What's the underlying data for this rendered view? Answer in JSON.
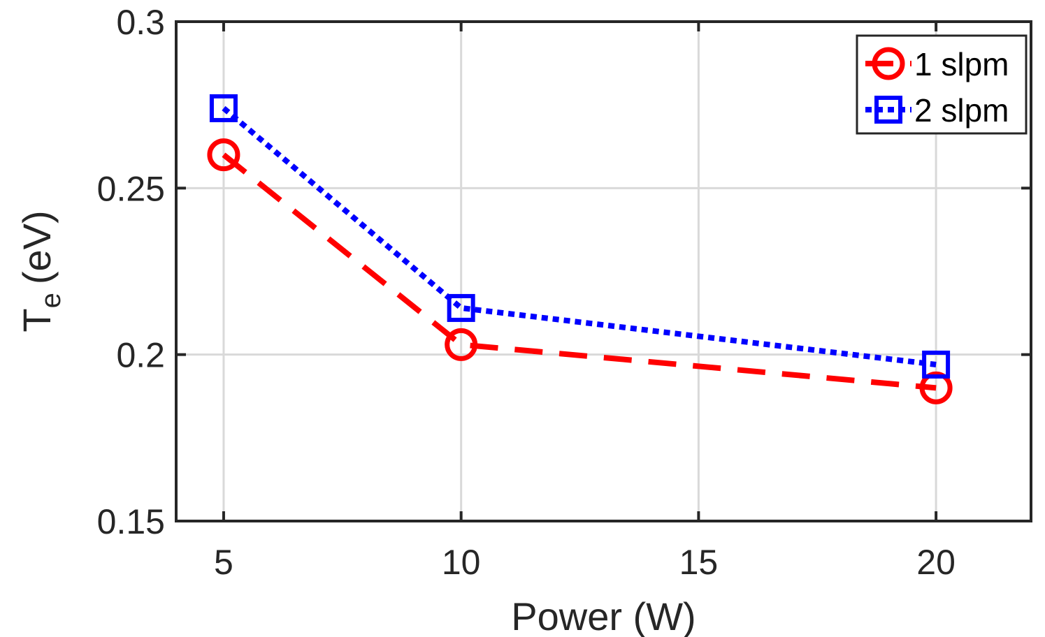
{
  "chart_data": {
    "type": "line",
    "title": "",
    "xlabel": "Power (W)",
    "ylabel_main": "T",
    "ylabel_sub": "e",
    "ylabel_unit": "(eV)",
    "xlim": [
      4,
      22
    ],
    "ylim": [
      0.15,
      0.3
    ],
    "xticks": [
      5,
      10,
      15,
      20
    ],
    "xtick_labels": [
      "5",
      "10",
      "15",
      "20"
    ],
    "yticks": [
      0.15,
      0.2,
      0.25,
      0.3
    ],
    "ytick_labels": [
      "0.15",
      "0.2",
      "0.25",
      "0.3"
    ],
    "grid": true,
    "legend_position": "top-right",
    "series": [
      {
        "name": "1 slpm",
        "x": [
          5,
          10,
          20
        ],
        "y": [
          0.26,
          0.203,
          0.19
        ],
        "color": "#ff0000",
        "line_style": "dashed",
        "marker": "circle"
      },
      {
        "name": "2 slpm",
        "x": [
          5,
          10,
          20
        ],
        "y": [
          0.274,
          0.214,
          0.197
        ],
        "color": "#0000ff",
        "line_style": "dotted",
        "marker": "square"
      }
    ]
  }
}
